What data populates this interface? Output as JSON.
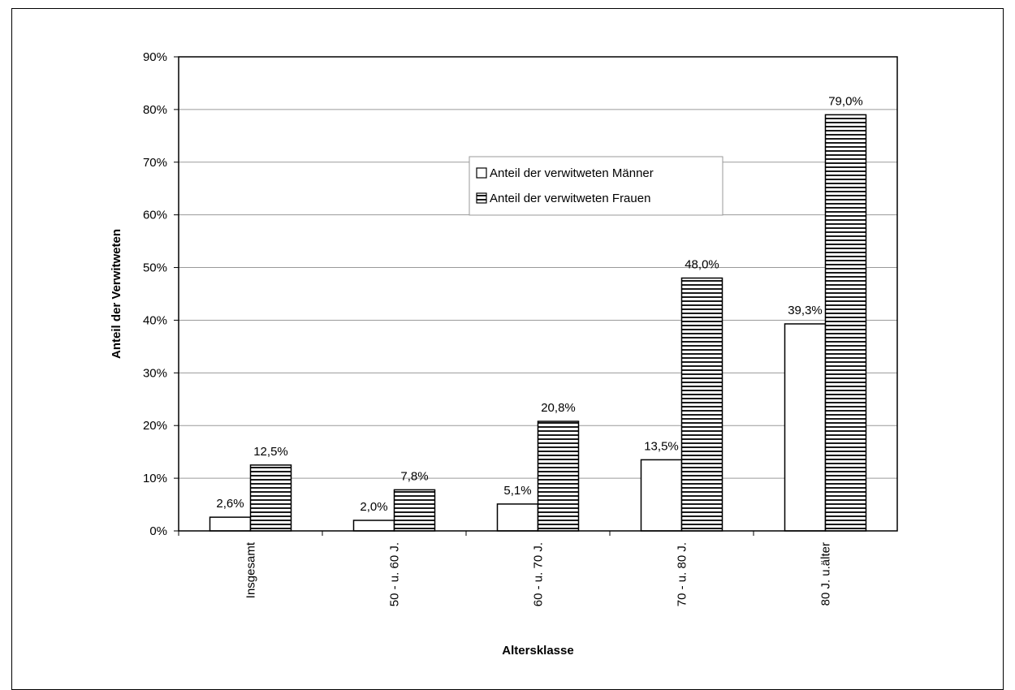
{
  "chart_data": {
    "type": "bar",
    "xlabel": "Altersklasse",
    "ylabel": "Anteil der Verwitweten",
    "ylim": [
      0,
      90
    ],
    "yticks": [
      0,
      10,
      20,
      30,
      40,
      50,
      60,
      70,
      80,
      90
    ],
    "ytick_suffix": "%",
    "grid": "horizontal",
    "legend_position": "center",
    "categories": [
      "Insgesamt",
      "50 - u. 60 J.",
      "60 - u. 70 J.",
      "70 - u. 80 J.",
      "80 J. u.älter"
    ],
    "series": [
      {
        "name": "Anteil der verwitweten Männer",
        "values": [
          2.6,
          2.0,
          5.1,
          13.5,
          39.3
        ],
        "labels": [
          "2,6%",
          "2,0%",
          "5,1%",
          "13,5%",
          "39,3%"
        ],
        "fill": "#ffffff"
      },
      {
        "name": "Anteil der verwitweten Frauen",
        "values": [
          12.5,
          7.8,
          20.8,
          48.0,
          79.0
        ],
        "labels": [
          "12,5%",
          "7,8%",
          "20,8%",
          "48,0%",
          "79,0%"
        ],
        "fill": "horizontal-stripes"
      }
    ]
  }
}
